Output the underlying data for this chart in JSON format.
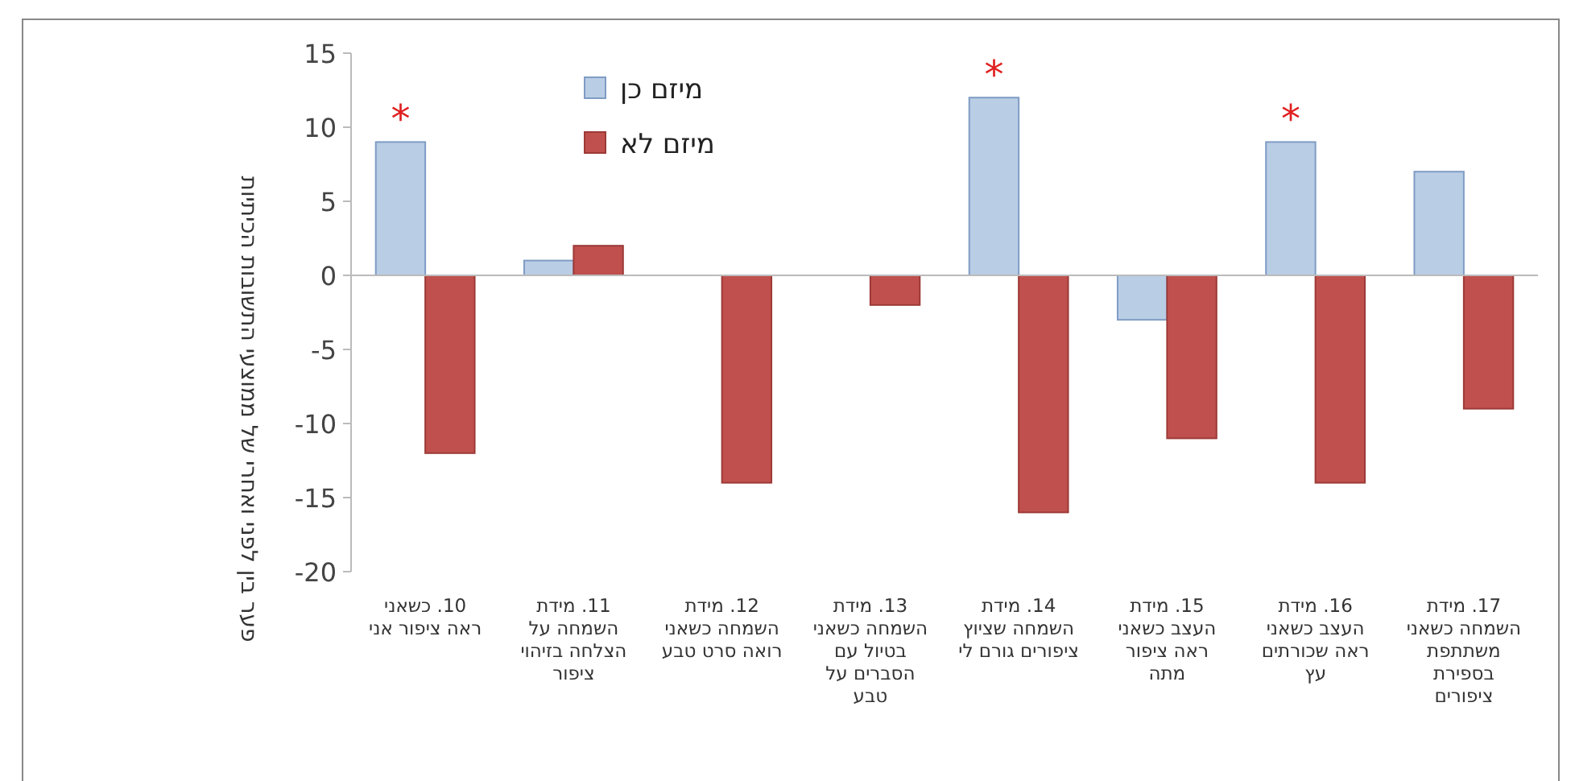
{
  "chart_data": {
    "type": "bar",
    "ylabel": "פער בין לפני ואחרי של ממוצעי התשובות הכיתיות",
    "categories": [
      "10. כשאני ראה ציפור אני",
      "11. מידת השמחה על הצלחה בזיהוי ציפור",
      "12. מידת השמחה כשאני רואה סרט טבע",
      "13. מידת השמחה כשאני בטיול עם הסברים על טבע",
      "14. מידת השמחה שציוץ ציפורים גורם לי",
      "15. מידת העצב כשאני ראה ציפור מתה",
      "16. מידת העצב כשאני ראה שכורתים עץ",
      "17. מידת השמחה כשאני משתתפת בספירת ציפורים"
    ],
    "series": [
      {
        "name": "מיזם כן",
        "color": "#b9cde5",
        "values": [
          9,
          1,
          0,
          0,
          12,
          -3,
          9,
          7
        ]
      },
      {
        "name": "מיזם לא",
        "color": "#c0504d",
        "values": [
          -12,
          2,
          -14,
          -2,
          -16,
          -11,
          -14,
          -9
        ]
      }
    ],
    "ylim": [
      -20,
      15
    ],
    "yticks": [
      -20,
      -15,
      -10,
      -5,
      0,
      5,
      10,
      15
    ],
    "legend": "top left",
    "annotations": [
      {
        "text": "*",
        "x": "10. כשאני ראה ציפור אני",
        "y": 9
      },
      {
        "text": "*",
        "x": "14. מידת השמחה שציוץ ציפורים גורם לי",
        "y": 12
      },
      {
        "text": "*",
        "x": "16. מידת העצב כשאני ראה שכורתים עץ",
        "y": 9
      }
    ]
  }
}
